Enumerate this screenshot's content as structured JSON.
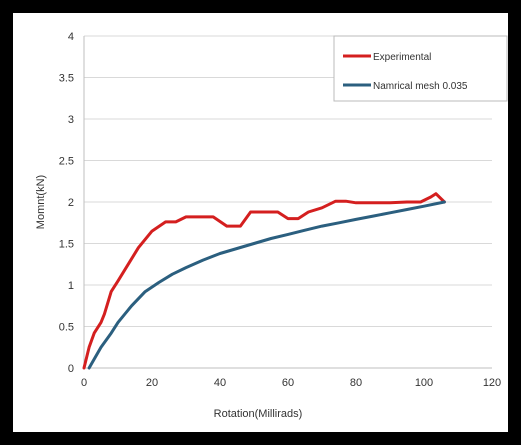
{
  "chart_data": {
    "type": "line",
    "title": "",
    "xlabel": "Rotation(Millirads)",
    "ylabel": "Momnt(kN)",
    "xlim": [
      0,
      120
    ],
    "ylim": [
      0,
      4
    ],
    "xticks": [
      0,
      20,
      40,
      60,
      80,
      100,
      120
    ],
    "yticks": [
      "0",
      "0.5",
      "1",
      "1.5",
      "2",
      "2.5",
      "3",
      "3.5",
      "4"
    ],
    "grid": "horizontal",
    "legend_position": "top-right",
    "series": [
      {
        "name": "Experimental",
        "color": "#d41f1f",
        "x": [
          0,
          1.5,
          3,
          5,
          6,
          8,
          10,
          13,
          16,
          20,
          24,
          27,
          30,
          33,
          38,
          42,
          46,
          49,
          53,
          57,
          60,
          63,
          66,
          70,
          74,
          77,
          80,
          85,
          90,
          95,
          99,
          102,
          103.5,
          106
        ],
        "y": [
          0,
          0.25,
          0.42,
          0.55,
          0.65,
          0.92,
          1.05,
          1.25,
          1.45,
          1.65,
          1.76,
          1.76,
          1.82,
          1.82,
          1.82,
          1.71,
          1.71,
          1.88,
          1.88,
          1.88,
          1.8,
          1.8,
          1.88,
          1.93,
          2.01,
          2.01,
          1.99,
          1.99,
          1.99,
          2.0,
          2.0,
          2.06,
          2.1,
          2.0
        ]
      },
      {
        "name": "Namrical mesh 0.035",
        "color": "#2b5f7f",
        "x": [
          1.5,
          5,
          8,
          10,
          14,
          18,
          22,
          26,
          30,
          35,
          40,
          45,
          50,
          55,
          60,
          65,
          70,
          75,
          80,
          85,
          90,
          95,
          100,
          106
        ],
        "y": [
          0,
          0.25,
          0.42,
          0.55,
          0.75,
          0.92,
          1.03,
          1.13,
          1.21,
          1.3,
          1.38,
          1.44,
          1.5,
          1.56,
          1.61,
          1.66,
          1.71,
          1.75,
          1.79,
          1.83,
          1.87,
          1.91,
          1.95,
          2.0
        ]
      }
    ]
  }
}
